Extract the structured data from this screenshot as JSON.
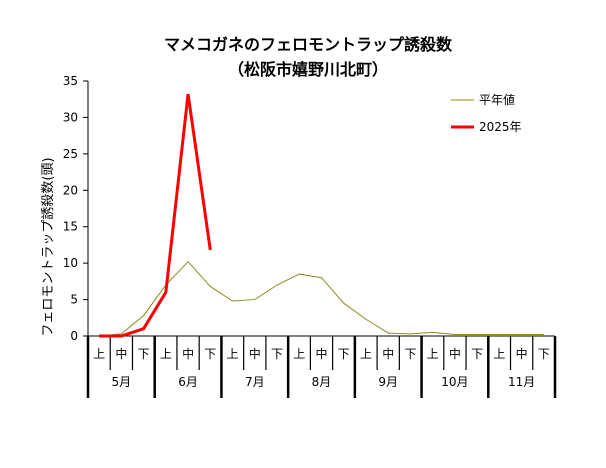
{
  "chart_data": {
    "type": "line",
    "title": "マメコガネのフェロモントラップ誘殺数",
    "subtitle": "（松阪市嬉野川北町）",
    "ylabel": "フェロモントラップ誘殺数(頭)",
    "xlabel": "",
    "ylim": [
      0,
      35
    ],
    "yticks": [
      0,
      5,
      10,
      15,
      20,
      25,
      30,
      35
    ],
    "x": [
      "上",
      "中",
      "下",
      "上",
      "中",
      "下",
      "上",
      "中",
      "下",
      "上",
      "中",
      "下",
      "上",
      "中",
      "下",
      "上",
      "中",
      "下",
      "上",
      "中",
      "下"
    ],
    "months": [
      "5月",
      "6月",
      "7月",
      "8月",
      "9月",
      "10月",
      "11月"
    ],
    "legend_position": "top-right",
    "grid": false,
    "series": [
      {
        "name": "平年値",
        "color": "#8c8c1e",
        "values": [
          0,
          0.3,
          2.8,
          7.0,
          10.2,
          6.8,
          4.8,
          5.0,
          7.0,
          8.5,
          8.0,
          4.5,
          2.3,
          0.4,
          0.3,
          0.5,
          0.2,
          0.2,
          0.2,
          0.2,
          0.2
        ]
      },
      {
        "name": "2025年",
        "color": "#ff0000",
        "values": [
          0,
          0,
          1.0,
          6.0,
          33.2,
          11.8,
          null,
          null,
          null,
          null,
          null,
          null,
          null,
          null,
          null,
          null,
          null,
          null,
          null,
          null,
          null
        ]
      }
    ]
  }
}
